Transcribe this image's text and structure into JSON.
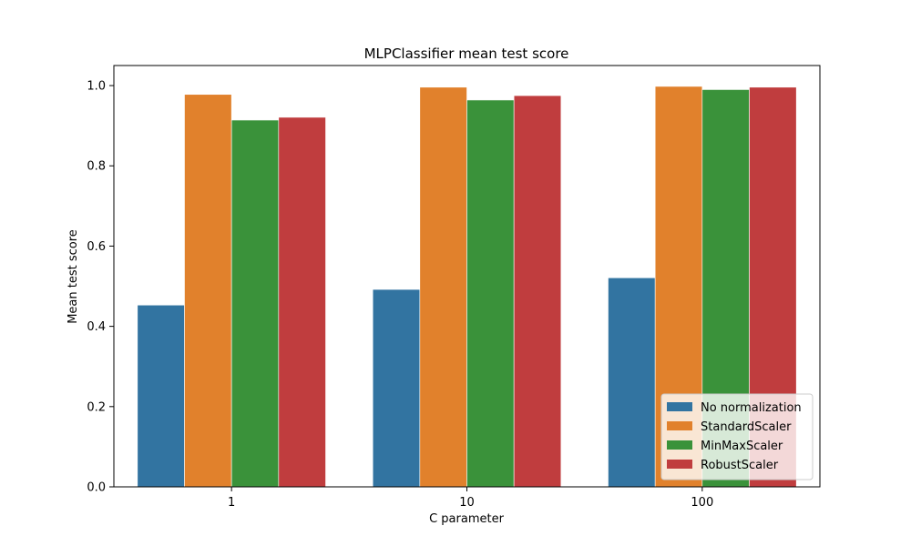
{
  "chart_data": {
    "type": "bar",
    "title": "MLPClassifier mean test score",
    "xlabel": "C parameter",
    "ylabel": "Mean test score",
    "categories": [
      "1",
      "10",
      "100"
    ],
    "series": [
      {
        "name": "No normalization",
        "color": "#3274a1",
        "values": [
          0.453,
          0.492,
          0.521
        ]
      },
      {
        "name": "StandardScaler",
        "color": "#e1812c",
        "values": [
          0.978,
          0.996,
          0.998
        ]
      },
      {
        "name": "MinMaxScaler",
        "color": "#3a923a",
        "values": [
          0.914,
          0.964,
          0.99
        ]
      },
      {
        "name": "RobustScaler",
        "color": "#c03d3e",
        "values": [
          0.921,
          0.975,
          0.996
        ]
      }
    ],
    "ylim": [
      0,
      1.05
    ],
    "yticks": [
      0.0,
      0.2,
      0.4,
      0.6,
      0.8,
      1.0
    ],
    "grid": false,
    "legend_position": "lower-right"
  }
}
